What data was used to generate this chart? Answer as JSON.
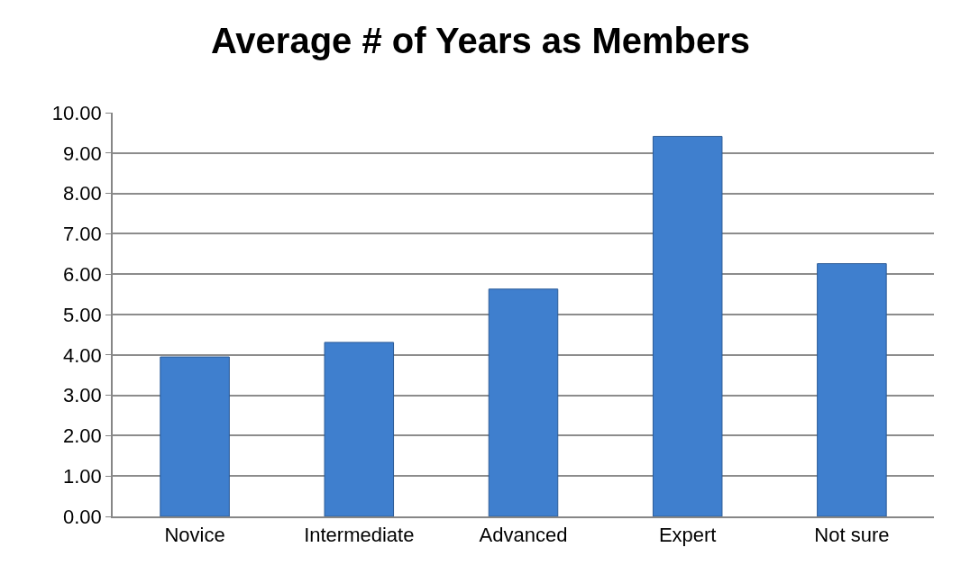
{
  "chart_data": {
    "type": "bar",
    "title": "Average # of Years as Members",
    "categories": [
      "Novice",
      "Intermediate",
      "Advanced",
      "Expert",
      "Not sure"
    ],
    "values": [
      3.95,
      4.31,
      5.63,
      9.41,
      6.26
    ],
    "color": "#3f7fce",
    "ylim": [
      0,
      10
    ],
    "yticks": [
      {
        "value": 0,
        "label": "0.00"
      },
      {
        "value": 1,
        "label": "1.00"
      },
      {
        "value": 2,
        "label": "2.00"
      },
      {
        "value": 3,
        "label": "3.00"
      },
      {
        "value": 4,
        "label": "4.00"
      },
      {
        "value": 5,
        "label": "5.00"
      },
      {
        "value": 6,
        "label": "6.00"
      },
      {
        "value": 7,
        "label": "7.00"
      },
      {
        "value": 8,
        "label": "8.00"
      },
      {
        "value": 9,
        "label": "9.00"
      },
      {
        "value": 10,
        "label": "10.00"
      }
    ],
    "grid": "y",
    "legend": false
  }
}
